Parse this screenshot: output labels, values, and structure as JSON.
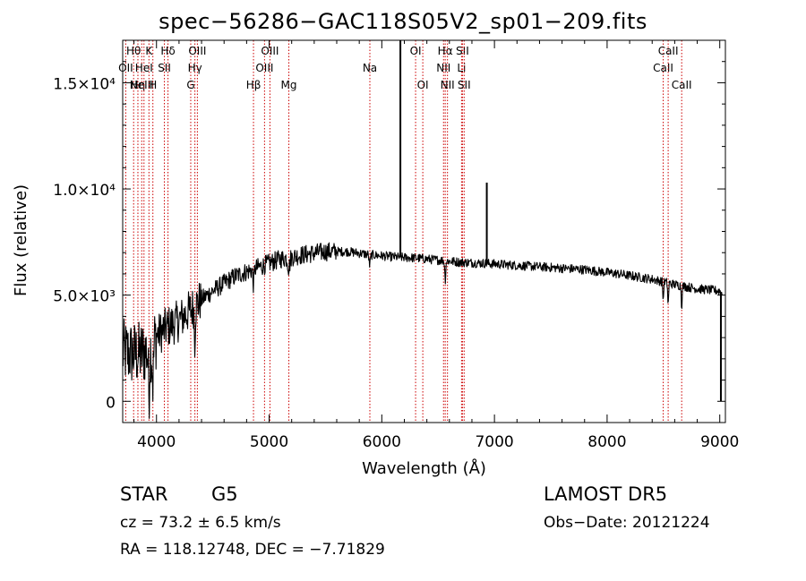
{
  "chart_data": {
    "type": "line",
    "title": "spec−56286−GAC118S05V2_sp01−209.fits",
    "xlabel": "Wavelength (Å)",
    "ylabel": "Flux (relative)",
    "xlim": [
      3700,
      9050
    ],
    "ylim": [
      -1000,
      17000
    ],
    "x_ticks": [
      {
        "value": 4000,
        "label": "4000"
      },
      {
        "value": 5000,
        "label": "5000"
      },
      {
        "value": 6000,
        "label": "6000"
      },
      {
        "value": 7000,
        "label": "7000"
      },
      {
        "value": 8000,
        "label": "8000"
      },
      {
        "value": 9000,
        "label": "9000"
      }
    ],
    "y_ticks": [
      {
        "value": 0,
        "label": "0"
      },
      {
        "value": 5000,
        "label": "5.0×10³"
      },
      {
        "value": 10000,
        "label": "1.0×10⁴"
      },
      {
        "value": 15000,
        "label": "1.5×10⁴"
      }
    ],
    "grid": false,
    "continuum": [
      [
        3700,
        2300
      ],
      [
        3850,
        2200
      ],
      [
        3950,
        2500
      ],
      [
        4000,
        3100
      ],
      [
        4100,
        3500
      ],
      [
        4200,
        3800
      ],
      [
        4300,
        4300
      ],
      [
        4400,
        4800
      ],
      [
        4500,
        5200
      ],
      [
        4700,
        5900
      ],
      [
        4900,
        6300
      ],
      [
        5100,
        6700
      ],
      [
        5300,
        6900
      ],
      [
        5500,
        7050
      ],
      [
        5700,
        7050
      ],
      [
        5900,
        6900
      ],
      [
        6100,
        6800
      ],
      [
        6300,
        6750
      ],
      [
        6500,
        6650
      ],
      [
        6700,
        6550
      ],
      [
        6900,
        6500
      ],
      [
        7200,
        6400
      ],
      [
        7500,
        6300
      ],
      [
        7800,
        6200
      ],
      [
        8100,
        6000
      ],
      [
        8400,
        5750
      ],
      [
        8600,
        5500
      ],
      [
        8800,
        5300
      ],
      [
        9000,
        5200
      ],
      [
        9020,
        5050
      ]
    ],
    "absorption_features": [
      {
        "x": 3933,
        "depth": 2000,
        "width": 8
      },
      {
        "x": 3968,
        "depth": 1800,
        "width": 8
      },
      {
        "x": 4340,
        "depth": 1600,
        "width": 6
      },
      {
        "x": 4861,
        "depth": 700,
        "width": 8
      },
      {
        "x": 5175,
        "depth": 500,
        "width": 12
      },
      {
        "x": 5893,
        "depth": 500,
        "width": 8
      },
      {
        "x": 6563,
        "depth": 900,
        "width": 6
      },
      {
        "x": 8498,
        "depth": 900,
        "width": 5
      },
      {
        "x": 8542,
        "depth": 1100,
        "width": 5
      },
      {
        "x": 8662,
        "depth": 1000,
        "width": 5
      }
    ],
    "spikes": [
      {
        "x": 6165,
        "peak": 17000
      },
      {
        "x": 6932,
        "peak": 10300
      },
      {
        "x": 9010,
        "peak": 0
      }
    ],
    "line_markers": [
      {
        "x": 3727,
        "label": "OII",
        "row": 2
      },
      {
        "x": 3797,
        "label": "Hθ",
        "row": 1
      },
      {
        "x": 3835,
        "label": "Hη",
        "row": 3
      },
      {
        "x": 3869,
        "label": "NeIII",
        "row": 3
      },
      {
        "x": 3889,
        "label": "HeI",
        "row": 2
      },
      {
        "x": 3933,
        "label": "K",
        "row": 1
      },
      {
        "x": 3968,
        "label": "H",
        "row": 3
      },
      {
        "x": 4070,
        "label": "SII",
        "row": 2
      },
      {
        "x": 4102,
        "label": "Hδ",
        "row": 1
      },
      {
        "x": 4304,
        "label": "G",
        "row": 3
      },
      {
        "x": 4341,
        "label": "Hγ",
        "row": 2
      },
      {
        "x": 4363,
        "label": "OIII",
        "row": 1
      },
      {
        "x": 4861,
        "label": "Hβ",
        "row": 3
      },
      {
        "x": 4959,
        "label": "OIII",
        "row": 2
      },
      {
        "x": 5007,
        "label": "OIII",
        "row": 1
      },
      {
        "x": 5175,
        "label": "Mg",
        "row": 3
      },
      {
        "x": 5894,
        "label": "Na",
        "row": 2
      },
      {
        "x": 6300,
        "label": "OI",
        "row": 1
      },
      {
        "x": 6364,
        "label": "OI",
        "row": 3
      },
      {
        "x": 6548,
        "label": "NII",
        "row": 2
      },
      {
        "x": 6563,
        "label": "Hα",
        "row": 1
      },
      {
        "x": 6583,
        "label": "NII",
        "row": 3
      },
      {
        "x": 6708,
        "label": "Li",
        "row": 2
      },
      {
        "x": 6716,
        "label": "SII",
        "row": 1
      },
      {
        "x": 6731,
        "label": "SII",
        "row": 3
      },
      {
        "x": 8498,
        "label": "CaII",
        "row": 2
      },
      {
        "x": 8542,
        "label": "CaII",
        "row": 1
      },
      {
        "x": 8662,
        "label": "CaII",
        "row": 3
      }
    ],
    "colors": {
      "spectrum": "#000000",
      "marker": "#cc0000",
      "axis": "#000000"
    }
  },
  "info": {
    "object_class": "STAR",
    "subclass": "G5",
    "survey": "LAMOST DR5",
    "redshift": "cz = 73.2 ± 6.5 km/s",
    "obs_date": "Obs−Date: 20121224",
    "coords": "RA = 118.12748, DEC =  −7.71829"
  }
}
